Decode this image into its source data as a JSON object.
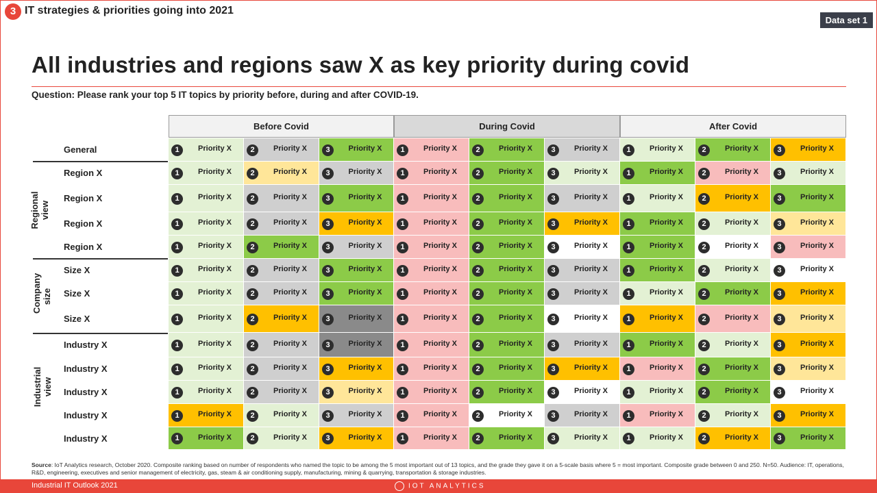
{
  "section": {
    "number": "3",
    "title": "IT strategies & priorities going into 2021"
  },
  "dataset_label": "Data set 1",
  "headline": "All industries and regions saw X as key priority during covid",
  "question": "Question: Please rank your top 5 IT topics by priority before, during and after COVID-19.",
  "phases": [
    "Before Covid",
    "During Covid",
    "After Covid"
  ],
  "groups": [
    {
      "label": "Regional\nview"
    },
    {
      "label": "Company\nsize"
    },
    {
      "label": "Industrial\nview"
    }
  ],
  "colors": {
    "dark_green": "#8ccb48",
    "light_green": "#e3f1d4",
    "dark_gray": "#cfcfcf",
    "orange": "#ffc000",
    "light_yellow": "#ffe699",
    "pink": "#f8bcbc",
    "white": "#ffffff",
    "accent": "#e8463a"
  },
  "rows": [
    {
      "label": "General",
      "cells": [
        [
          "1",
          "Priority X",
          "light_green"
        ],
        [
          "2",
          "Priority X",
          "dark_gray"
        ],
        [
          "3",
          "Priority X",
          "dark_green"
        ],
        [
          "1",
          "Priority X",
          "pink"
        ],
        [
          "2",
          "Priority X",
          "dark_green"
        ],
        [
          "3",
          "Priority X",
          "dark_gray"
        ],
        [
          "1",
          "Priority X",
          "light_green"
        ],
        [
          "2",
          "Priority X",
          "dark_green"
        ],
        [
          "3",
          "Priority X",
          "orange"
        ]
      ]
    },
    {
      "label": "Region X",
      "cells": [
        [
          "1",
          "Priority X",
          "light_green"
        ],
        [
          "2",
          "Priority X",
          "light_yellow"
        ],
        [
          "3",
          "Priority X",
          "dark_gray"
        ],
        [
          "1",
          "Priority X",
          "pink"
        ],
        [
          "2",
          "Priority X",
          "dark_green"
        ],
        [
          "3",
          "Priority X",
          "light_green"
        ],
        [
          "1",
          "Priority X",
          "dark_green"
        ],
        [
          "2",
          "Priority X",
          "pink"
        ],
        [
          "3",
          "Priority X",
          "light_green"
        ]
      ]
    },
    {
      "label": "Region X",
      "cells": [
        [
          "1",
          "Priority X",
          "light_green"
        ],
        [
          "2",
          "Priority X",
          "dark_gray"
        ],
        [
          "3",
          "Priority X",
          "dark_green"
        ],
        [
          "1",
          "Priority X",
          "pink"
        ],
        [
          "2",
          "Priority X",
          "dark_green"
        ],
        [
          "3",
          "Priority X",
          "dark_gray"
        ],
        [
          "1",
          "Priority X",
          "light_green"
        ],
        [
          "2",
          "Priority X",
          "orange"
        ],
        [
          "3",
          "Priority X",
          "dark_green"
        ]
      ]
    },
    {
      "label": "Region X",
      "cells": [
        [
          "1",
          "Priority X",
          "light_green"
        ],
        [
          "2",
          "Priority X",
          "dark_gray"
        ],
        [
          "3",
          "Priority X",
          "orange"
        ],
        [
          "1",
          "Priority X",
          "pink"
        ],
        [
          "2",
          "Priority X",
          "dark_green"
        ],
        [
          "3",
          "Priority X",
          "orange"
        ],
        [
          "1",
          "Priority X",
          "dark_green"
        ],
        [
          "2",
          "Priority X",
          "light_green"
        ],
        [
          "3",
          "Priority X",
          "light_yellow"
        ]
      ]
    },
    {
      "label": "Region X",
      "cells": [
        [
          "1",
          "Priority X",
          "light_green"
        ],
        [
          "2",
          "Priority X",
          "dark_green"
        ],
        [
          "3",
          "Priority X",
          "dark_gray"
        ],
        [
          "1",
          "Priority X",
          "pink"
        ],
        [
          "2",
          "Priority X",
          "dark_green"
        ],
        [
          "3",
          "Priority X",
          "white"
        ],
        [
          "1",
          "Priority X",
          "dark_green"
        ],
        [
          "2",
          "Priority X",
          "white"
        ],
        [
          "3",
          "Priority X",
          "pink"
        ]
      ]
    },
    {
      "label": "Size X",
      "cells": [
        [
          "1",
          "Priority X",
          "light_green"
        ],
        [
          "2",
          "Priority X",
          "dark_gray"
        ],
        [
          "3",
          "Priority X",
          "dark_green"
        ],
        [
          "1",
          "Priority X",
          "pink"
        ],
        [
          "2",
          "Priority X",
          "dark_green"
        ],
        [
          "3",
          "Priority X",
          "dark_gray"
        ],
        [
          "1",
          "Priority X",
          "dark_green"
        ],
        [
          "2",
          "Priority X",
          "light_green"
        ],
        [
          "3",
          "Priority X",
          "white"
        ]
      ]
    },
    {
      "label": "Size X",
      "cells": [
        [
          "1",
          "Priority X",
          "light_green"
        ],
        [
          "2",
          "Priority X",
          "dark_gray"
        ],
        [
          "3",
          "Priority X",
          "dark_green"
        ],
        [
          "1",
          "Priority X",
          "pink"
        ],
        [
          "2",
          "Priority X",
          "dark_green"
        ],
        [
          "3",
          "Priority X",
          "dark_gray"
        ],
        [
          "1",
          "Priority X",
          "light_green"
        ],
        [
          "2",
          "Priority X",
          "dark_green"
        ],
        [
          "3",
          "Priority X",
          "orange"
        ]
      ]
    },
    {
      "label": "Size X",
      "cells": [
        [
          "1",
          "Priority X",
          "light_green"
        ],
        [
          "2",
          "Priority X",
          "orange"
        ],
        [
          "3",
          "Priority X",
          "shade"
        ],
        [
          "1",
          "Priority X",
          "pink"
        ],
        [
          "2",
          "Priority X",
          "dark_green"
        ],
        [
          "3",
          "Priority X",
          "white"
        ],
        [
          "1",
          "Priority X",
          "orange"
        ],
        [
          "2",
          "Priority X",
          "pink"
        ],
        [
          "3",
          "Priority X",
          "light_yellow"
        ]
      ]
    },
    {
      "label": "Industry X",
      "cells": [
        [
          "1",
          "Priority X",
          "light_green"
        ],
        [
          "2",
          "Priority X",
          "dark_gray"
        ],
        [
          "3",
          "Priority X",
          "shade"
        ],
        [
          "1",
          "Priority X",
          "pink"
        ],
        [
          "2",
          "Priority X",
          "dark_green"
        ],
        [
          "3",
          "Priority X",
          "dark_gray"
        ],
        [
          "1",
          "Priority X",
          "dark_green"
        ],
        [
          "2",
          "Priority X",
          "light_green"
        ],
        [
          "3",
          "Priority X",
          "orange"
        ]
      ]
    },
    {
      "label": "Industry X",
      "cells": [
        [
          "1",
          "Priority X",
          "light_green"
        ],
        [
          "2",
          "Priority X",
          "dark_gray"
        ],
        [
          "3",
          "Priority X",
          "orange"
        ],
        [
          "1",
          "Priority X",
          "pink"
        ],
        [
          "2",
          "Priority X",
          "dark_green"
        ],
        [
          "3",
          "Priority X",
          "orange"
        ],
        [
          "1",
          "Priority X",
          "pink"
        ],
        [
          "2",
          "Priority X",
          "dark_green"
        ],
        [
          "3",
          "Priority X",
          "light_yellow"
        ]
      ]
    },
    {
      "label": "Industry X",
      "cells": [
        [
          "1",
          "Priority X",
          "light_green"
        ],
        [
          "2",
          "Priority X",
          "dark_gray"
        ],
        [
          "3",
          "Priority X",
          "light_yellow"
        ],
        [
          "1",
          "Priority X",
          "pink"
        ],
        [
          "2",
          "Priority X",
          "dark_green"
        ],
        [
          "3",
          "Priority X",
          "white"
        ],
        [
          "1",
          "Priority X",
          "light_green"
        ],
        [
          "2",
          "Priority X",
          "dark_green"
        ],
        [
          "3",
          "Priority X",
          "white"
        ]
      ]
    },
    {
      "label": "Industry X",
      "cells": [
        [
          "1",
          "Priority X",
          "orange"
        ],
        [
          "2",
          "Priority X",
          "light_green"
        ],
        [
          "3",
          "Priority X",
          "dark_gray"
        ],
        [
          "1",
          "Priority X",
          "pink"
        ],
        [
          "2",
          "Priority X",
          "white"
        ],
        [
          "3",
          "Priority X",
          "dark_gray"
        ],
        [
          "1",
          "Priority X",
          "pink"
        ],
        [
          "2",
          "Priority X",
          "light_green"
        ],
        [
          "3",
          "Priority X",
          "orange"
        ]
      ]
    },
    {
      "label": "Industry X",
      "cells": [
        [
          "1",
          "Priority X",
          "dark_green"
        ],
        [
          "2",
          "Priority X",
          "light_green"
        ],
        [
          "3",
          "Priority X",
          "orange"
        ],
        [
          "1",
          "Priority X",
          "pink"
        ],
        [
          "2",
          "Priority X",
          "dark_green"
        ],
        [
          "3",
          "Priority X",
          "light_green"
        ],
        [
          "1",
          "Priority X",
          "light_green"
        ],
        [
          "2",
          "Priority X",
          "orange"
        ],
        [
          "3",
          "Priority X",
          "dark_green"
        ]
      ]
    }
  ],
  "footnote": {
    "source_label": "Source",
    "text": ": IoT Analytics research, October 2020. Composite ranking based on number of respondents who named the topic to be among the 5 most important out of 13 topics, and the grade they gave it on a 5-scale basis where 5 = most important. Composite grade between 0 and 250. N=50. Audience: IT, operations, R&D, engineering, executives and senior management of electricity, gas, steam & air conditioning supply, manufacturing, mining & quarrying, transportation & storage industries."
  },
  "footer": {
    "left": "Industrial IT Outlook 2021",
    "logo": "IOT ANALYTICS"
  }
}
